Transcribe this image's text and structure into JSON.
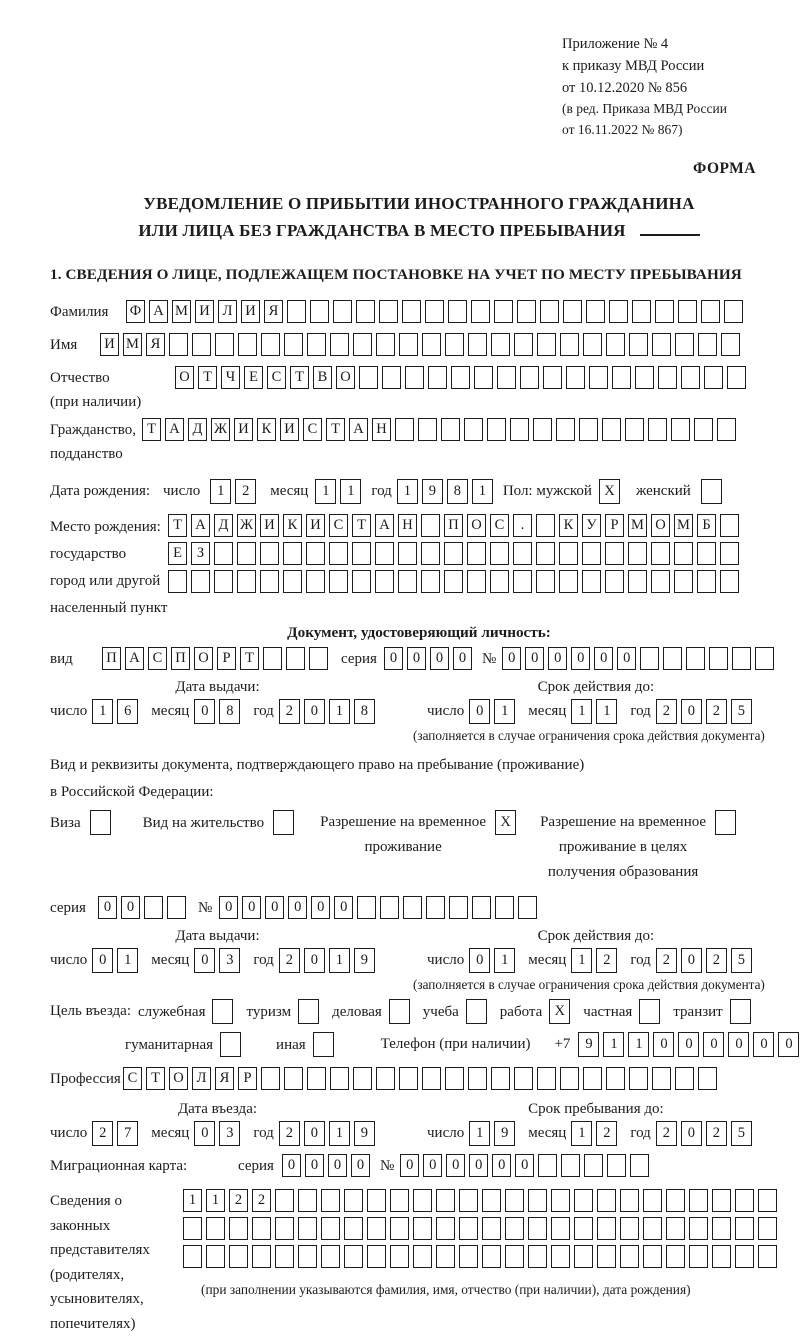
{
  "header": {
    "line1": "Приложение № 4",
    "line2": "к приказу МВД России",
    "line3": "от 10.12.2020 № 856",
    "line4": "(в ред. Приказа МВД России",
    "line5": "от 16.11.2022 № 867)",
    "forma": "ФОРМА"
  },
  "title": {
    "line1": "УВЕДОМЛЕНИЕ О ПРИБЫТИИ ИНОСТРАННОГО ГРАЖДАНИНА",
    "line2": "ИЛИ ЛИЦА БЕЗ ГРАЖДАНСТВА В МЕСТО ПРЕБЫВАНИЯ"
  },
  "section1": {
    "heading": "1. СВЕДЕНИЯ О ЛИЦЕ, ПОДЛЕЖАЩЕМ ПОСТАНОВКЕ НА УЧЕТ ПО МЕСТУ ПРЕБЫВАНИЯ"
  },
  "date_labels": {
    "day": "число",
    "month": "месяц",
    "year": "год"
  },
  "person": {
    "surname": {
      "label": "Фамилия",
      "boxes": {
        "text": "ФАМИЛИЯ",
        "count": 27
      }
    },
    "name": {
      "label": "Имя",
      "boxes": {
        "text": "ИМЯ",
        "count": 28
      }
    },
    "patronymic": {
      "label1": "Отчество",
      "label2": "(при наличии)",
      "boxes": {
        "text": "ОТЧЕСТВО",
        "count": 25
      }
    },
    "citizenship": {
      "label1": "Гражданство,",
      "label2": "подданство",
      "boxes": {
        "text": "ТАДЖИКИСТАН",
        "count": 26
      }
    },
    "birth_date": {
      "label": "Дата рождения:",
      "day": {
        "text": "12",
        "count": 2
      },
      "month": {
        "text": "11",
        "count": 2
      },
      "year": {
        "text": "1981",
        "count": 4
      },
      "sex_label": "Пол: мужской",
      "male_box": {
        "text": "X",
        "count": 1
      },
      "female_label": "женский",
      "female_box": {
        "text": "",
        "count": 1
      }
    },
    "birth_place": {
      "label_lines": [
        "Место рождения:",
        "государство",
        "город или другой",
        "населенный пункт"
      ],
      "row1": {
        "text": "ТАДЖИКИСТАН ПОС. КУРМОМБ",
        "count": 25
      },
      "row2": {
        "text": "ЕЗ",
        "count": 25
      },
      "row3": {
        "text": "",
        "count": 25
      }
    }
  },
  "identity_doc": {
    "heading": "Документ, удостоверяющий личность:",
    "type_label": "вид",
    "type": {
      "text": "ПАСПОРТ",
      "count": 10
    },
    "series_label": "серия",
    "series": {
      "text": "0000",
      "count": 4
    },
    "number_label": "№",
    "number": {
      "text": "000000",
      "count": 12
    },
    "issue": {
      "title": "Дата выдачи:",
      "day": {
        "text": "16",
        "count": 2
      },
      "month": {
        "text": "08",
        "count": 2
      },
      "year": {
        "text": "2018",
        "count": 4
      }
    },
    "valid": {
      "title": "Срок действия до:",
      "day": {
        "text": "01",
        "count": 2
      },
      "month": {
        "text": "11",
        "count": 2
      },
      "year": {
        "text": "2025",
        "count": 4
      }
    },
    "note": "(заполняется в случае ограничения срока действия документа)"
  },
  "residence_right": {
    "intro1": "Вид и реквизиты документа, подтверждающего право на пребывание (проживание)",
    "intro2": "в Российской Федерации:",
    "visa": {
      "label": "Виза",
      "box": {
        "text": "",
        "count": 1
      }
    },
    "residence_permit": {
      "label": "Вид на жительство",
      "box": {
        "text": "",
        "count": 1
      }
    },
    "temp_permit": {
      "label1": "Разрешение на временное",
      "label2": "проживание",
      "box": {
        "text": "X",
        "count": 1
      }
    },
    "temp_permit_edu": {
      "label1": "Разрешение на временное",
      "label2": "проживание в целях",
      "label3": "получения образования",
      "box": {
        "text": "",
        "count": 1
      }
    }
  },
  "residence_doc": {
    "series_label": "серия",
    "series": {
      "text": "00",
      "count": 4
    },
    "number_label": "№",
    "number": {
      "text": "000000",
      "count": 14
    },
    "issue": {
      "title": "Дата выдачи:",
      "day": {
        "text": "01",
        "count": 2
      },
      "month": {
        "text": "03",
        "count": 2
      },
      "year": {
        "text": "2019",
        "count": 4
      }
    },
    "valid": {
      "title": "Срок действия до:",
      "day": {
        "text": "01",
        "count": 2
      },
      "month": {
        "text": "12",
        "count": 2
      },
      "year": {
        "text": "2025",
        "count": 4
      }
    },
    "note": "(заполняется в случае ограничения срока действия документа)"
  },
  "purpose": {
    "prefix": "Цель въезда:",
    "service": {
      "label": "служебная",
      "box": {
        "text": "",
        "count": 1
      }
    },
    "tourism": {
      "label": "туризм",
      "box": {
        "text": "",
        "count": 1
      }
    },
    "business": {
      "label": "деловая",
      "box": {
        "text": "",
        "count": 1
      }
    },
    "study": {
      "label": "учеба",
      "box": {
        "text": "",
        "count": 1
      }
    },
    "work": {
      "label": "работа",
      "box": {
        "text": "X",
        "count": 1
      }
    },
    "private": {
      "label": "частная",
      "box": {
        "text": "",
        "count": 1
      }
    },
    "transit": {
      "label": "транзит",
      "box": {
        "text": "",
        "count": 1
      }
    },
    "humanitarian": {
      "label": "гуманитарная",
      "box": {
        "text": "",
        "count": 1
      }
    },
    "other": {
      "label": "иная",
      "box": {
        "text": "",
        "count": 1
      }
    },
    "phone_label": "Телефон (при наличии)",
    "phone_prefix": "+7",
    "phone": {
      "text": "911000000",
      "count": 10
    }
  },
  "profession": {
    "label": "Профессия",
    "boxes": {
      "text": "СТОЛЯР",
      "count": 26
    }
  },
  "entry_dates": {
    "issue": {
      "title": "Дата въезда:",
      "day": {
        "text": "27",
        "count": 2
      },
      "month": {
        "text": "03",
        "count": 2
      },
      "year": {
        "text": "2019",
        "count": 4
      }
    },
    "valid": {
      "title": "Срок пребывания до:",
      "day": {
        "text": "19",
        "count": 2
      },
      "month": {
        "text": "12",
        "count": 2
      },
      "year": {
        "text": "2025",
        "count": 4
      }
    }
  },
  "migration_card": {
    "label": "Миграционная карта:",
    "series_label": "серия",
    "series": {
      "text": "0000",
      "count": 4
    },
    "number_label": "№",
    "number": {
      "text": "000000",
      "count": 11
    }
  },
  "representatives": {
    "label_lines": [
      "Сведения о",
      "законных",
      "представителях",
      "(родителях,",
      "усыновителях,",
      "попечителях)"
    ],
    "row1": {
      "text": "1122",
      "count": 26
    },
    "row2": {
      "text": "",
      "count": 26
    },
    "row3": {
      "text": "",
      "count": 26
    },
    "note": "(при заполнении указываются фамилия, имя, отчество (при наличии), дата рождения)"
  }
}
